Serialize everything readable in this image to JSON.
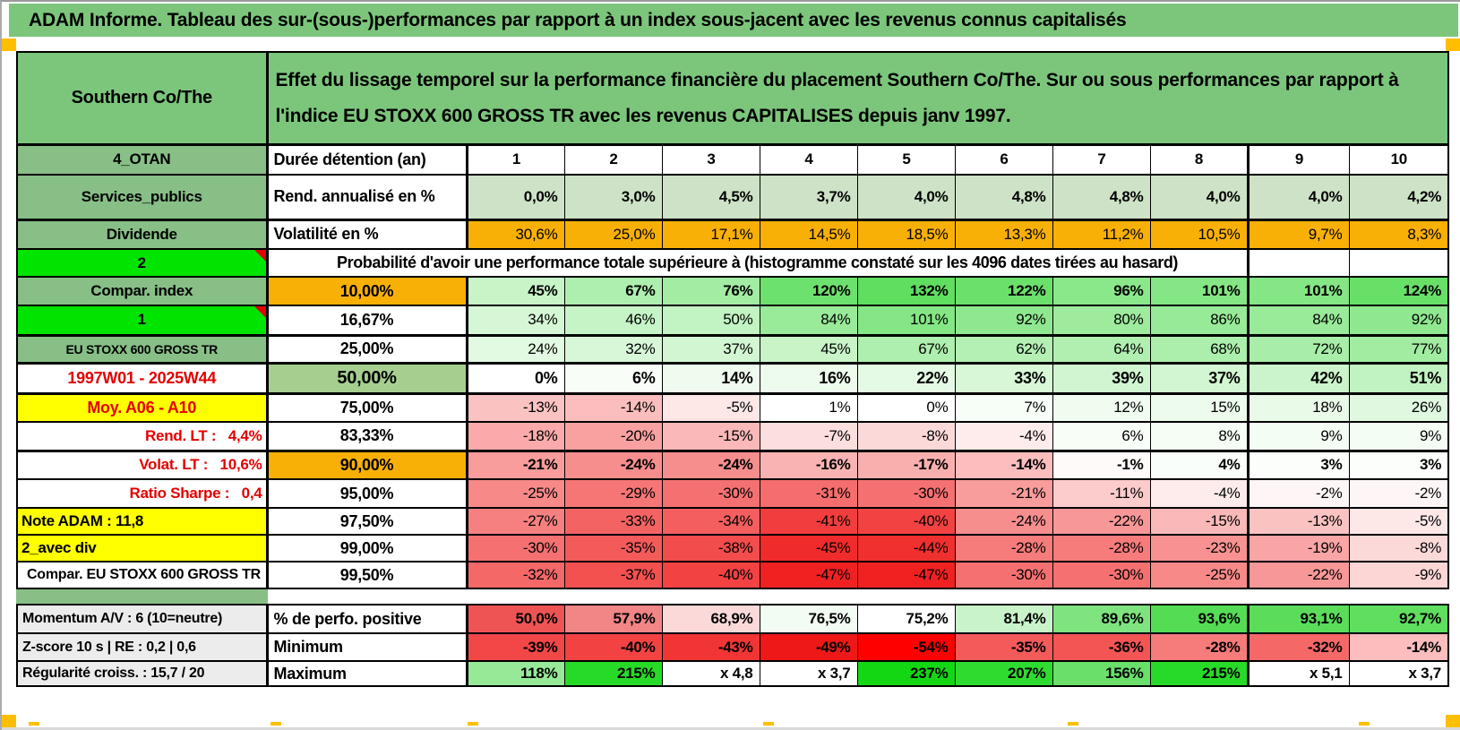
{
  "title": "ADAM Informe. Tableau des sur-(sous-)performances par rapport à un index sous-jacent avec les revenus connus capitalisés",
  "header": {
    "asset_name": "Southern Co/The",
    "description": "Effet du lissage temporel sur la performance financière du placement Southern Co/The. Sur ou sous performances par rapport à l'indice EU STOXX 600 GROSS TR avec les revenus CAPITALISES depuis janv 1997."
  },
  "colors": {
    "sheet_green": "#7CC67C",
    "label_green": "#87BF87",
    "bright_green": "#00E400",
    "orange": "#F9B006",
    "corner_orange": "#FFBF00",
    "yellow": "#FFFF00",
    "gray_label": "#ECECEC",
    "green_50": "#A6CF8F",
    "red_text": "#E30000",
    "comment_marker_red": "#E30000"
  },
  "table": {
    "rows": [
      {
        "id": "duree",
        "label": {
          "text": "4_OTAN",
          "bg": "#87BF87"
        },
        "head": {
          "text": "Durée détention (an)",
          "bg": "#FFFFFF"
        },
        "cells": [
          [
            "1",
            "#FFFFFF"
          ],
          [
            "2",
            "#FFFFFF"
          ],
          [
            "3",
            "#FFFFFF"
          ],
          [
            "4",
            "#FFFFFF"
          ],
          [
            "5",
            "#FFFFFF"
          ],
          [
            "6",
            "#FFFFFF"
          ],
          [
            "7",
            "#FFFFFF"
          ],
          [
            "8",
            "#FFFFFF"
          ],
          [
            "9",
            "#FFFFFF"
          ],
          [
            "10",
            "#FFFFFF"
          ]
        ]
      },
      {
        "id": "rend",
        "label": {
          "text": "Services_publics",
          "bg": "#87BF87"
        },
        "head": {
          "text": "Rend. annualisé en %",
          "bg": "#FFFFFF"
        },
        "cells": [
          [
            "0,0%",
            "#CDE2C6"
          ],
          [
            "3,0%",
            "#CDE2C6"
          ],
          [
            "4,5%",
            "#CDE2C6"
          ],
          [
            "3,7%",
            "#CDE2C6"
          ],
          [
            "4,0%",
            "#CDE2C6"
          ],
          [
            "4,8%",
            "#CDE2C6"
          ],
          [
            "4,8%",
            "#CDE2C6"
          ],
          [
            "4,0%",
            "#CDE2C6"
          ],
          [
            "4,0%",
            "#CDE2C6"
          ],
          [
            "4,2%",
            "#CDE2C6"
          ]
        ]
      },
      {
        "id": "volat",
        "label": {
          "text": "Dividende",
          "bg": "#87BF87"
        },
        "head": {
          "text": "Volatilité en %",
          "bg": "#FFFFFF"
        },
        "cells": [
          [
            "30,6%",
            "#F9B006"
          ],
          [
            "25,0%",
            "#F9B006"
          ],
          [
            "17,1%",
            "#F9B006"
          ],
          [
            "14,5%",
            "#F9B006"
          ],
          [
            "18,5%",
            "#F9B006"
          ],
          [
            "13,3%",
            "#F9B006"
          ],
          [
            "11,2%",
            "#F9B006"
          ],
          [
            "10,5%",
            "#F9B006"
          ],
          [
            "9,7%",
            "#F9B006"
          ],
          [
            "8,3%",
            "#F9B006"
          ]
        ]
      },
      {
        "id": "proba",
        "label": {
          "text": "2",
          "bg": "#00E400",
          "marker": true
        },
        "merged": {
          "text": "Probabilité d'avoir une performance totale supérieure à (histogramme constaté sur les 4096 dates tirées au hasard)",
          "extra": [
            [
              "",
              "#FFFFFF"
            ],
            [
              "",
              "#FFFFFF"
            ]
          ]
        }
      },
      {
        "id": "p10",
        "label": {
          "text": "Compar. index",
          "bg": "#87BF87"
        },
        "head": {
          "text": "10,00%",
          "bg": "#F9B006"
        },
        "cells": [
          [
            "45%",
            "#C8F4C8"
          ],
          [
            "67%",
            "#AEEEAE"
          ],
          [
            "76%",
            "#A3ECA3"
          ],
          [
            "120%",
            "#6DE16D"
          ],
          [
            "132%",
            "#5FDE5F"
          ],
          [
            "122%",
            "#6BE06B"
          ],
          [
            "96%",
            "#8AE78A"
          ],
          [
            "101%",
            "#84E684"
          ],
          [
            "101%",
            "#84E684"
          ],
          [
            "124%",
            "#68E068"
          ]
        ]
      },
      {
        "id": "p1667",
        "label": {
          "text": "1",
          "bg": "#00E400",
          "marker": true
        },
        "head": {
          "text": "16,67%",
          "bg": "#FFFFFF"
        },
        "cells": [
          [
            "34%",
            "#D6F7D6"
          ],
          [
            "46%",
            "#C7F4C7"
          ],
          [
            "50%",
            "#C2F3C2"
          ],
          [
            "84%",
            "#99EA99"
          ],
          [
            "101%",
            "#84E684"
          ],
          [
            "92%",
            "#8FE88F"
          ],
          [
            "80%",
            "#9EEB9E"
          ],
          [
            "86%",
            "#97EA97"
          ],
          [
            "84%",
            "#99EA99"
          ],
          [
            "92%",
            "#8FE88F"
          ]
        ]
      },
      {
        "id": "p25",
        "label": {
          "text": "EU STOXX 600 GROSS TR",
          "bg": "#87BF87"
        },
        "head": {
          "text": "25,00%",
          "bg": "#FFFFFF"
        },
        "cells": [
          [
            "24%",
            "#E2F9E2"
          ],
          [
            "32%",
            "#D8F7D8"
          ],
          [
            "37%",
            "#D2F6D2"
          ],
          [
            "45%",
            "#C8F4C8"
          ],
          [
            "67%",
            "#AEEEAE"
          ],
          [
            "62%",
            "#B4EFB4"
          ],
          [
            "64%",
            "#B1EFB1"
          ],
          [
            "68%",
            "#ACEEAC"
          ],
          [
            "72%",
            "#A8EDA8"
          ],
          [
            "77%",
            "#A1ECA1"
          ]
        ]
      },
      {
        "id": "p50",
        "label": {
          "text": "1997W01 - 2025W44",
          "bg": "#FFFFFF",
          "color": "#E30000"
        },
        "head": {
          "text": "50,00%",
          "bg": "#A6CF8F"
        },
        "cells": [
          [
            "0%",
            "#FFFFFF"
          ],
          [
            "6%",
            "#F8FDF8"
          ],
          [
            "14%",
            "#EEFBEE"
          ],
          [
            "16%",
            "#ECFBEC"
          ],
          [
            "22%",
            "#E4FAE4"
          ],
          [
            "33%",
            "#D7F7D7"
          ],
          [
            "39%",
            "#D0F5D0"
          ],
          [
            "37%",
            "#D2F6D2"
          ],
          [
            "42%",
            "#CCF4CC"
          ],
          [
            "51%",
            "#C1F2C1"
          ]
        ]
      },
      {
        "id": "p75",
        "label": {
          "text": "Moy. A06 - A10",
          "bg": "#FFFF00",
          "color": "#E30000"
        },
        "head": {
          "text": "75,00%",
          "bg": "#FFFFFF"
        },
        "cells": [
          [
            "-13%",
            "#FBC2C2"
          ],
          [
            "-14%",
            "#FBBDBD"
          ],
          [
            "-5%",
            "#FDE7E7"
          ],
          [
            "1%",
            "#FEFFFE"
          ],
          [
            "0%",
            "#FFFFFF"
          ],
          [
            "7%",
            "#F7FDF7"
          ],
          [
            "12%",
            "#F1FCF1"
          ],
          [
            "15%",
            "#EDFBED"
          ],
          [
            "18%",
            "#E9FAE9"
          ],
          [
            "26%",
            "#E0F8E0"
          ]
        ]
      },
      {
        "id": "p8333",
        "label": {
          "text": "Rend. LT :   4,4%",
          "bg": "#FFFFFF",
          "color": "#E30000"
        },
        "head": {
          "text": "83,33%",
          "bg": "#FFFFFF"
        },
        "cells": [
          [
            "-18%",
            "#FAAAAA"
          ],
          [
            "-20%",
            "#F9A1A1"
          ],
          [
            "-15%",
            "#FAB8B8"
          ],
          [
            "-7%",
            "#FDDEDE"
          ],
          [
            "-8%",
            "#FCD9D9"
          ],
          [
            "-4%",
            "#FEECEC"
          ],
          [
            "6%",
            "#F8FDF8"
          ],
          [
            "8%",
            "#F5FDF5"
          ],
          [
            "9%",
            "#F4FDF4"
          ],
          [
            "9%",
            "#F4FDF4"
          ]
        ]
      },
      {
        "id": "p90",
        "label": {
          "text": "Volat. LT :   10,6%",
          "bg": "#FFFFFF",
          "color": "#E30000"
        },
        "head": {
          "text": "90,00%",
          "bg": "#F9B006"
        },
        "cells": [
          [
            "-21%",
            "#F89C9C"
          ],
          [
            "-24%",
            "#F78E8E"
          ],
          [
            "-24%",
            "#F78E8E"
          ],
          [
            "-16%",
            "#FAB3B3"
          ],
          [
            "-17%",
            "#FAAFAF"
          ],
          [
            "-14%",
            "#FBBDBD"
          ],
          [
            "-1%",
            "#FFFAFA"
          ],
          [
            "4%",
            "#FAFEFA"
          ],
          [
            "3%",
            "#FBFEFB"
          ],
          [
            "3%",
            "#FBFEFB"
          ]
        ]
      },
      {
        "id": "p95",
        "label": {
          "text": "Ratio Sharpe :   0,4",
          "bg": "#FFFFFF",
          "color": "#E30000"
        },
        "head": {
          "text": "95,00%",
          "bg": "#FFFFFF"
        },
        "cells": [
          [
            "-25%",
            "#F78989"
          ],
          [
            "-29%",
            "#F67676"
          ],
          [
            "-30%",
            "#F57171"
          ],
          [
            "-31%",
            "#F56D6D"
          ],
          [
            "-30%",
            "#F57171"
          ],
          [
            "-21%",
            "#F89C9C"
          ],
          [
            "-11%",
            "#FCCBCB"
          ],
          [
            "-4%",
            "#FEECEC"
          ],
          [
            "-2%",
            "#FEF6F6"
          ],
          [
            "-2%",
            "#FEF6F6"
          ]
        ]
      },
      {
        "id": "p975",
        "label": {
          "text": "Note ADAM : 11,8",
          "bg": "#FFFF00"
        },
        "head": {
          "text": "97,50%",
          "bg": "#FFFFFF"
        },
        "cells": [
          [
            "-27%",
            "#F68080"
          ],
          [
            "-33%",
            "#F46363"
          ],
          [
            "-34%",
            "#F45E5E"
          ],
          [
            "-41%",
            "#F13D3D"
          ],
          [
            "-40%",
            "#F24242"
          ],
          [
            "-24%",
            "#F78E8E"
          ],
          [
            "-22%",
            "#F89797"
          ],
          [
            "-15%",
            "#FAB8B8"
          ],
          [
            "-13%",
            "#FBC2C2"
          ],
          [
            "-5%",
            "#FDE7E7"
          ]
        ]
      },
      {
        "id": "p99",
        "label": {
          "text": "2_avec div",
          "bg": "#FFFF00"
        },
        "head": {
          "text": "99,00%",
          "bg": "#FFFFFF"
        },
        "cells": [
          [
            "-30%",
            "#F57171"
          ],
          [
            "-35%",
            "#F35A5A"
          ],
          [
            "-38%",
            "#F24C4C"
          ],
          [
            "-45%",
            "#F02B2B"
          ],
          [
            "-44%",
            "#F02F2F"
          ],
          [
            "-28%",
            "#F67B7B"
          ],
          [
            "-28%",
            "#F67B7B"
          ],
          [
            "-23%",
            "#F89292"
          ],
          [
            "-19%",
            "#F9A5A5"
          ],
          [
            "-8%",
            "#FCD9D9"
          ]
        ]
      },
      {
        "id": "p995",
        "label": {
          "text": "Compar. EU STOXX 600 GROSS TR",
          "bg": "#FFFFFF"
        },
        "head": {
          "text": "99,50%",
          "bg": "#FFFFFF"
        },
        "cells": [
          [
            "-32%",
            "#F46868"
          ],
          [
            "-37%",
            "#F35050"
          ],
          [
            "-40%",
            "#F24242"
          ],
          [
            "-47%",
            "#EF2121"
          ],
          [
            "-47%",
            "#EF2121"
          ],
          [
            "-30%",
            "#F57171"
          ],
          [
            "-30%",
            "#F57171"
          ],
          [
            "-25%",
            "#F78989"
          ],
          [
            "-22%",
            "#F89797"
          ],
          [
            "-9%",
            "#FCD5D5"
          ]
        ]
      }
    ]
  },
  "bottom": {
    "rows": [
      {
        "id": "perfpos",
        "label": {
          "text": "Momentum A/V : 6 (10=neutre)",
          "bg": "#ECECEC"
        },
        "head": {
          "text": "% de perfo. positive",
          "bg": "#FFFFFF"
        },
        "cells": [
          [
            "50,0%",
            "#EF5454"
          ],
          [
            "57,9%",
            "#F28585"
          ],
          [
            "68,9%",
            "#FBD9D9"
          ],
          [
            "76,5%",
            "#F2FCF2"
          ],
          [
            "75,2%",
            "#FFFFFF"
          ],
          [
            "81,4%",
            "#C9F3C9"
          ],
          [
            "89,6%",
            "#7FE47F"
          ],
          [
            "93,6%",
            "#54DC54"
          ],
          [
            "93,1%",
            "#5BDD5B"
          ],
          [
            "92,7%",
            "#5FDE5F"
          ]
        ]
      },
      {
        "id": "minimum",
        "label": {
          "text": "Z-score 10 s | RE : 0,2 | 0,6",
          "bg": "#ECECEC"
        },
        "head": {
          "text": "Minimum",
          "bg": "#FFFFFF"
        },
        "cells": [
          [
            "-39%",
            "#F24747"
          ],
          [
            "-40%",
            "#F24242"
          ],
          [
            "-43%",
            "#F13434"
          ],
          [
            "-49%",
            "#EF1818"
          ],
          [
            "-54%",
            "#FF0000"
          ],
          [
            "-35%",
            "#F35A5A"
          ],
          [
            "-36%",
            "#F35555"
          ],
          [
            "-28%",
            "#F67B7B"
          ],
          [
            "-32%",
            "#F46868"
          ],
          [
            "-14%",
            "#FBBDBD"
          ]
        ]
      },
      {
        "id": "maximum",
        "label": {
          "text": "Régularité croiss. : 15,7 / 20",
          "bg": "#ECECEC"
        },
        "head": {
          "text": "Maximum",
          "bg": "#FFFFFF"
        },
        "cells": [
          [
            "118%",
            "#97E897"
          ],
          [
            "215%",
            "#28DA28"
          ],
          [
            "x 4,8",
            "#FFFFFF"
          ],
          [
            "x 3,7",
            "#FFFFFF"
          ],
          [
            "237%",
            "#14D714"
          ],
          [
            "207%",
            "#30DB30"
          ],
          [
            "156%",
            "#6AE06A"
          ],
          [
            "215%",
            "#28DA28"
          ],
          [
            "x 5,1",
            "#FFFFFF"
          ],
          [
            "x 3,7",
            "#FFFFFF"
          ]
        ]
      }
    ]
  }
}
